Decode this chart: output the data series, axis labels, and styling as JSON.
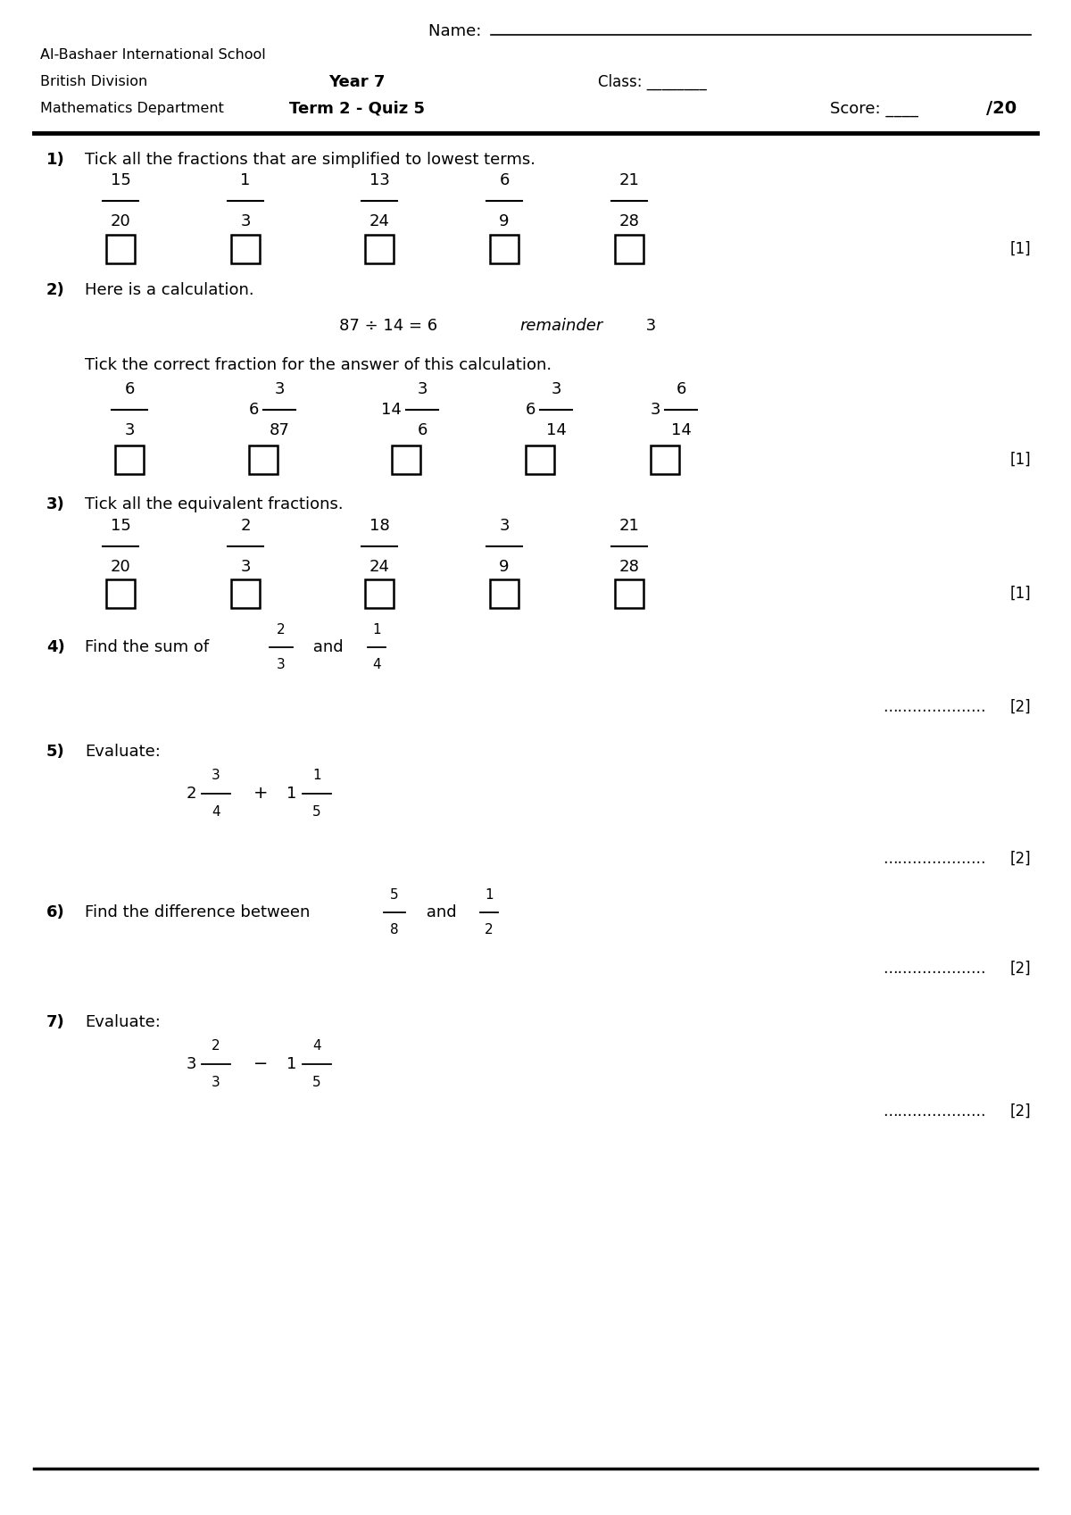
{
  "school": "Al-Bashaer International School",
  "division": "British Division",
  "department": "Mathematics Department",
  "year": "Year 7",
  "quiz": "Term 2 - Quiz 5",
  "bg_color": "#ffffff",
  "q1_text": "Tick all the fractions that are simplified to lowest terms.",
  "q1_fractions": [
    [
      "15",
      "20"
    ],
    [
      "1",
      "3"
    ],
    [
      "13",
      "24"
    ],
    [
      "6",
      "9"
    ],
    [
      "21",
      "28"
    ]
  ],
  "q2_intro": "Here is a calculation.",
  "q2_tick_text": "Tick the correct fraction for the answer of this calculation.",
  "q2_options": [
    {
      "whole": "",
      "num": "6",
      "den": "3"
    },
    {
      "whole": "6",
      "num": "3",
      "den": "87"
    },
    {
      "whole": "14",
      "num": "3",
      "den": "6"
    },
    {
      "whole": "6",
      "num": "3",
      "den": "14"
    },
    {
      "whole": "3",
      "num": "6",
      "den": "14"
    }
  ],
  "q3_text": "Tick all the equivalent fractions.",
  "q3_fractions": [
    [
      "15",
      "20"
    ],
    [
      "2",
      "3"
    ],
    [
      "18",
      "24"
    ],
    [
      "3",
      "9"
    ],
    [
      "21",
      "28"
    ]
  ],
  "q4_num1": "2",
  "q4_den1": "3",
  "q4_num2": "1",
  "q4_den2": "4",
  "q5_whole1": "2",
  "q5_num1": "3",
  "q5_den1": "4",
  "q5_whole2": "1",
  "q5_num2": "1",
  "q5_den2": "5",
  "q6_num1": "5",
  "q6_den1": "8",
  "q6_num2": "1",
  "q6_den2": "2",
  "q7_whole1": "3",
  "q7_num1": "2",
  "q7_den1": "3",
  "q7_whole2": "1",
  "q7_num2": "4",
  "q7_den2": "5"
}
